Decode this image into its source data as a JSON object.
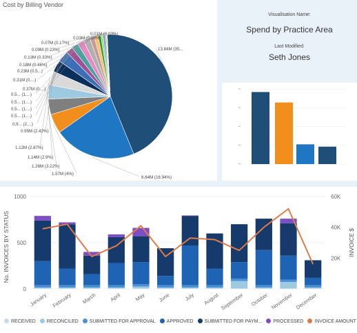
{
  "pie": {
    "title": "Cost by Billing Vendor",
    "labels": [
      {
        "text": "13.84M (35...",
        "side": "right"
      },
      {
        "text": "6.64M (16.94%)",
        "side": "right"
      },
      {
        "text": "1.57M (4%)",
        "side": "left"
      },
      {
        "text": "1.26M (3.22%)",
        "side": "left"
      },
      {
        "text": "1.14M (2.9%)",
        "side": "left"
      },
      {
        "text": "1.12M (2.87%)",
        "side": "left"
      },
      {
        "text": "0.95M (2.42%)",
        "side": "left"
      },
      {
        "text": "0.9... (2....)",
        "side": "left"
      },
      {
        "text": "0.5... (1....)",
        "side": "left"
      },
      {
        "text": "0.5... (1....)",
        "side": "left"
      },
      {
        "text": "0.5... (1....)",
        "side": "left"
      },
      {
        "text": "0.5... (1....)",
        "side": "left"
      },
      {
        "text": "0.37M (0....)",
        "side": "left"
      },
      {
        "text": "0.31M (0....)",
        "side": "left"
      },
      {
        "text": "0.23M (0.5...)",
        "side": "left"
      },
      {
        "text": "0.18M (0.46%)",
        "side": "left"
      },
      {
        "text": "0.13M (0.33%)",
        "side": "left"
      },
      {
        "text": "0.09M (0.23%)",
        "side": "left"
      },
      {
        "text": "0.07M (0.17%)",
        "side": "left"
      },
      {
        "text": "0.03M (0.08%)",
        "side": "left"
      },
      {
        "text": "0.01M (0.03%)",
        "side": "left"
      }
    ]
  },
  "info": {
    "vis_label": "Visualisation Name:",
    "vis_name": "Spend by Practice Area",
    "mod_label": "Last Modified:",
    "mod_name": "Seth Jones"
  },
  "chart_data": [
    {
      "type": "pie",
      "title": "Cost by Billing Vendor",
      "slices": [
        {
          "label": "13.84M (35...",
          "value": 13.84,
          "color": "#1f4e79"
        },
        {
          "label": "6.64M (16.94%)",
          "value": 6.64,
          "color": "#1f77c4"
        },
        {
          "label": "1.57M (4%)",
          "value": 1.57,
          "color": "#f28e1c"
        },
        {
          "label": "1.26M (3.22%)",
          "value": 1.26,
          "color": "#7f7f7f"
        },
        {
          "label": "1.14M (2.9%)",
          "value": 1.14,
          "color": "#9ecae1"
        },
        {
          "label": "1.12M (2.87%)",
          "value": 1.12,
          "color": "#d9d9d9"
        },
        {
          "label": "0.95M (2.42%)",
          "value": 0.95,
          "color": "#0b2f5b"
        },
        {
          "label": "0.9... (2....)",
          "value": 0.9,
          "color": "#3d6fb6"
        },
        {
          "label": "0.5... (1....)",
          "value": 0.56,
          "color": "#a05195"
        },
        {
          "label": "0.5... (1....)",
          "value": 0.55,
          "color": "#4ba3a0"
        },
        {
          "label": "0.5... (1....)",
          "value": 0.54,
          "color": "#e78ac3"
        },
        {
          "label": "0.5... (1....)",
          "value": 0.53,
          "color": "#b0b0b0"
        },
        {
          "label": "0.37M (0....)",
          "value": 0.37,
          "color": "#c49c94"
        },
        {
          "label": "0.31M (0....)",
          "value": 0.31,
          "color": "#ffbb78"
        },
        {
          "label": "0.23M (0.5...)",
          "value": 0.23,
          "color": "#2ca02c"
        },
        {
          "label": "0.18M (0.46%)",
          "value": 0.18,
          "color": "#98df8a"
        },
        {
          "label": "0.13M (0.33%)",
          "value": 0.13,
          "color": "#9467bd"
        },
        {
          "label": "0.09M (0.23%)",
          "value": 0.09,
          "color": "#17becf"
        },
        {
          "label": "0.07M (0.17%)",
          "value": 0.07,
          "color": "#bcbd22"
        },
        {
          "label": "0.03M (0.08%)",
          "value": 0.03,
          "color": "#8c564b"
        },
        {
          "label": "0.01M (0.03%)",
          "value": 0.01,
          "color": "#e377c2"
        }
      ]
    },
    {
      "type": "bar",
      "title": "",
      "values": [
        62,
        53,
        17,
        15
      ],
      "colors": [
        "#1f4e79",
        "#f28e1c",
        "#1f77c4",
        "#1f4e79"
      ],
      "ylim": [
        0,
        70
      ]
    },
    {
      "type": "bar",
      "stacked": true,
      "categories": [
        "January",
        "February",
        "March",
        "April",
        "May",
        "June",
        "July",
        "August",
        "September",
        "October",
        "November",
        "December"
      ],
      "ylabel": "No. INVOICES BY STATUS",
      "y2label": "INVOICE $",
      "ylim": [
        0,
        1000
      ],
      "y2lim": [
        0,
        60000
      ],
      "yticks": [
        "0",
        "500",
        "1000"
      ],
      "y2ticks": [
        "20K",
        "40K",
        "60K"
      ],
      "series": [
        {
          "name": "RECEIVED",
          "color": "#c6dbef",
          "values": [
            5,
            5,
            5,
            5,
            5,
            5,
            5,
            5,
            5,
            5,
            5,
            5
          ]
        },
        {
          "name": "RECONCILED",
          "color": "#9ecae1",
          "values": [
            10,
            10,
            10,
            10,
            20,
            10,
            10,
            10,
            80,
            10,
            70,
            10
          ]
        },
        {
          "name": "SUBMITTED FOR APPROVAL",
          "color": "#4a90d9",
          "values": [
            25,
            25,
            25,
            25,
            25,
            25,
            25,
            25,
            25,
            25,
            25,
            25
          ]
        },
        {
          "name": "APPROVED",
          "color": "#1f63b5",
          "values": [
            260,
            180,
            120,
            240,
            240,
            100,
            430,
            180,
            180,
            380,
            260,
            80
          ]
        },
        {
          "name": "SUBMITTED FOR PAYM...",
          "color": "#163a6b",
          "values": [
            440,
            480,
            200,
            280,
            280,
            300,
            320,
            380,
            410,
            340,
            350,
            190
          ]
        },
        {
          "name": "PROCESSED",
          "color": "#7d4fc4",
          "values": [
            50,
            20,
            40,
            30,
            90,
            0,
            5,
            0,
            0,
            0,
            50,
            0
          ]
        }
      ],
      "line": {
        "name": "INVOICE AMOUNT",
        "color": "#e07b47",
        "values": [
          39000,
          42000,
          21000,
          28000,
          41000,
          21000,
          33000,
          32000,
          25000,
          40000,
          52000,
          16000
        ]
      }
    }
  ]
}
